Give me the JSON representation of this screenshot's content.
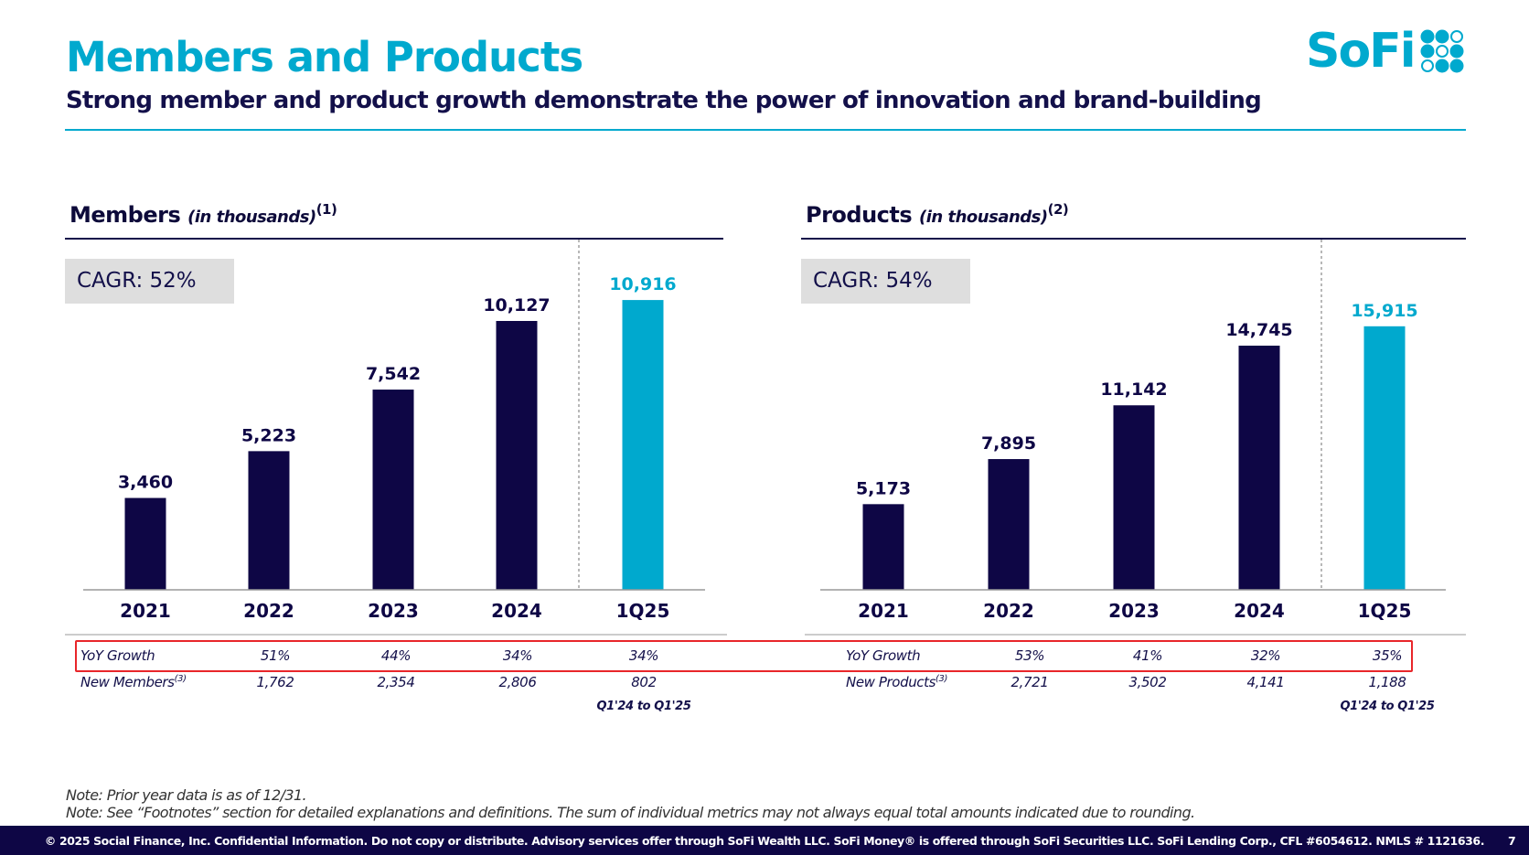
{
  "header": {
    "title": "Members and Products",
    "subtitle": "Strong member and product growth demonstrate the power of innovation and brand-building",
    "logo_text": "SoFi"
  },
  "colors": {
    "accent": "#00a9ce",
    "navy": "#0e0645",
    "highlight_box": "#e8262a"
  },
  "chart_data": [
    {
      "type": "bar",
      "title": "Members",
      "title_unit": "(in thousands)",
      "footnote": "(1)",
      "cagr": "CAGR: 52%",
      "categories": [
        "2021",
        "2022",
        "2023",
        "2024",
        "1Q25"
      ],
      "values": [
        3460,
        5223,
        7542,
        10127,
        10916
      ],
      "labels": [
        "3,460",
        "5,223",
        "7,542",
        "10,127",
        "10,916"
      ],
      "highlight_last": true,
      "table": {
        "row1_label": "YoY Growth",
        "row1": [
          "51%",
          "44%",
          "34%",
          "34%"
        ],
        "row2_label": "New Members",
        "row2_sup": "(3)",
        "row2": [
          "1,762",
          "2,354",
          "2,806",
          "802"
        ],
        "period_note": "Q1'24 to Q1'25"
      }
    },
    {
      "type": "bar",
      "title": "Products",
      "title_unit": "(in thousands)",
      "footnote": "(2)",
      "cagr": "CAGR: 54%",
      "categories": [
        "2021",
        "2022",
        "2023",
        "2024",
        "1Q25"
      ],
      "values": [
        5173,
        7895,
        11142,
        14745,
        15915
      ],
      "labels": [
        "5,173",
        "7,895",
        "11,142",
        "14,745",
        "15,915"
      ],
      "highlight_last": true,
      "table": {
        "row1_label": "YoY Growth",
        "row1": [
          "53%",
          "41%",
          "32%",
          "35%"
        ],
        "row2_label": "New Products",
        "row2_sup": "(3)",
        "row2": [
          "2,721",
          "3,502",
          "4,141",
          "1,188"
        ],
        "period_note": "Q1'24 to Q1'25"
      }
    }
  ],
  "notes": [
    "Note: Prior year data is as of 12/31.",
    "Note: See “Footnotes” section for detailed explanations and definitions. The sum of individual metrics may not always equal total amounts indicated due to rounding."
  ],
  "footer": {
    "text": "© 2025 Social Finance, Inc. Confidential Information. Do not copy or distribute. Advisory services offer through SoFi Wealth LLC. SoFi Money® is offered through SoFi Securities LLC. SoFi Lending Corp., CFL #6054612. NMLS # 1121636.",
    "page": "7"
  }
}
